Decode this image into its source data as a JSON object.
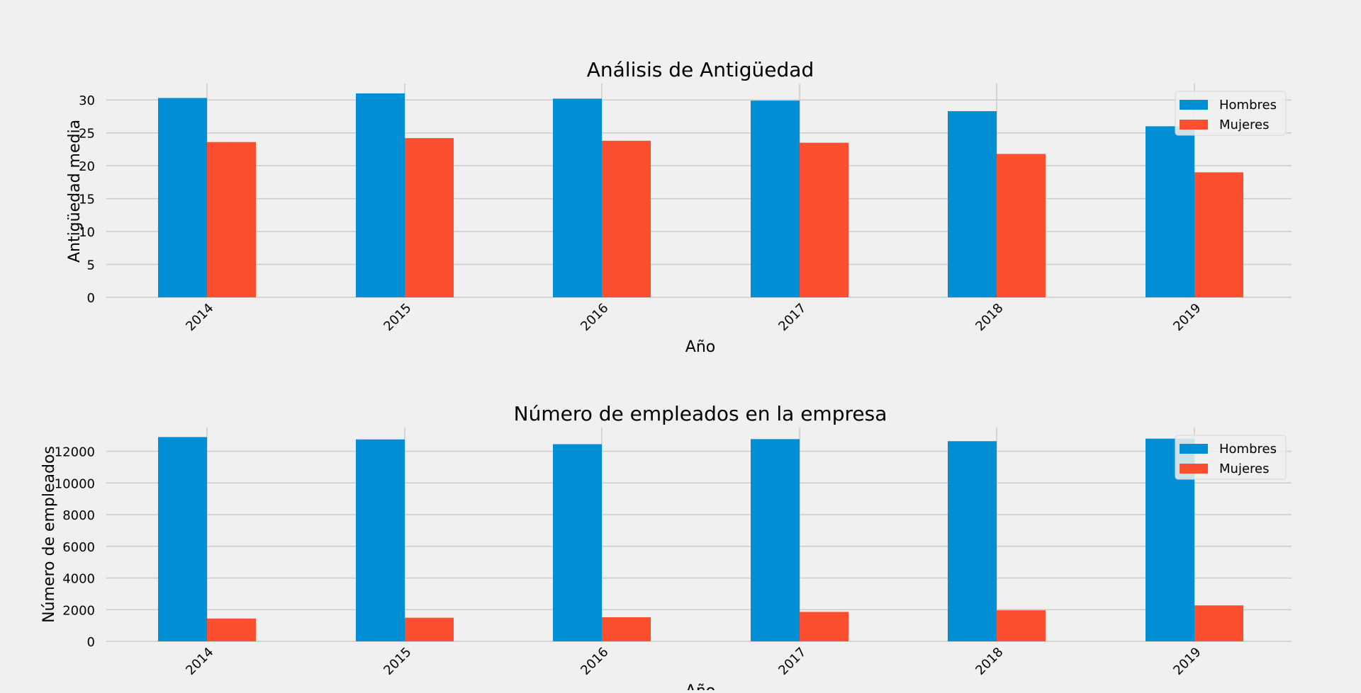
{
  "colors": {
    "background": "#f0f0f0",
    "grid": "#cbcbcb",
    "hombres": "#008fd5",
    "mujeres": "#fc4f30"
  },
  "chart_data": [
    {
      "type": "bar",
      "title": "Análisis de Antigüedad",
      "xlabel": "Año",
      "ylabel": "Antigüedad media",
      "categories": [
        "2014",
        "2015",
        "2016",
        "2017",
        "2018",
        "2019"
      ],
      "ylim": [
        0,
        32.5
      ],
      "yticks": [
        0,
        5,
        10,
        15,
        20,
        25,
        30
      ],
      "ytick_labels": [
        "0",
        "5",
        "10",
        "15",
        "20",
        "25",
        "30"
      ],
      "grid": true,
      "legend": "top-right",
      "series": [
        {
          "name": "Hombres",
          "color": "#008fd5",
          "values": [
            30.3,
            31.0,
            30.2,
            29.9,
            28.3,
            26.0
          ]
        },
        {
          "name": "Mujeres",
          "color": "#fc4f30",
          "values": [
            23.6,
            24.2,
            23.8,
            23.5,
            21.8,
            19.0
          ]
        }
      ]
    },
    {
      "type": "bar",
      "title": "Número de empleados en la empresa",
      "xlabel": "Año",
      "ylabel": "Número de empleados",
      "categories": [
        "2014",
        "2015",
        "2016",
        "2017",
        "2018",
        "2019"
      ],
      "ylim": [
        0,
        13500
      ],
      "yticks": [
        0,
        2000,
        4000,
        6000,
        8000,
        10000,
        12000
      ],
      "ytick_labels": [
        "0",
        "2000",
        "4000",
        "6000",
        "8000",
        "10000",
        "12000"
      ],
      "grid": true,
      "legend": "top-right",
      "series": [
        {
          "name": "Hombres",
          "color": "#008fd5",
          "values": [
            12900,
            12750,
            12450,
            12770,
            12640,
            12800
          ]
        },
        {
          "name": "Mujeres",
          "color": "#fc4f30",
          "values": [
            1440,
            1490,
            1520,
            1860,
            1960,
            2270
          ]
        }
      ]
    }
  ]
}
